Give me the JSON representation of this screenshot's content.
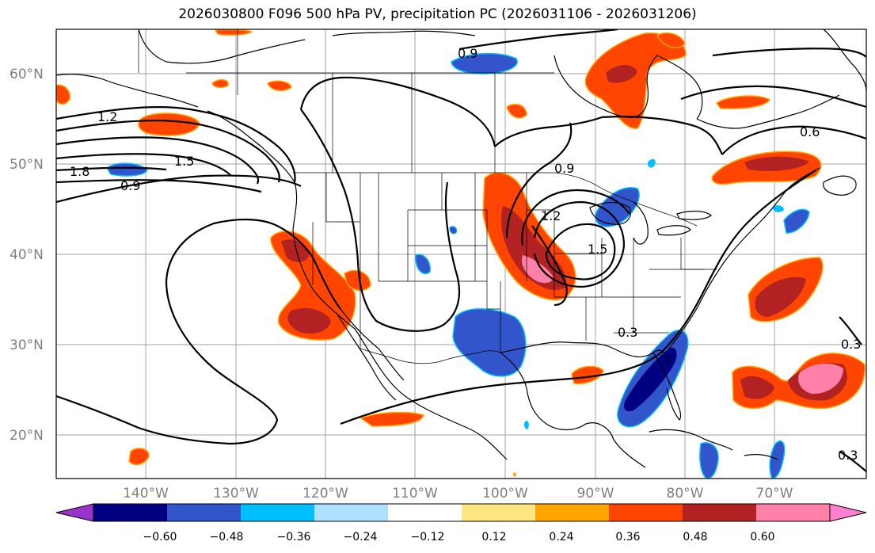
{
  "title": "2026030800 F096 500 hPa PV, precipitation PC (2026031106 - 2026031206)",
  "map": {
    "lat_labels": [
      "60°N",
      "50°N",
      "40°N",
      "30°N",
      "20°N"
    ],
    "lon_labels": [
      "140°W",
      "130°W",
      "120°W",
      "110°W",
      "100°W",
      "90°W",
      "80°W",
      "70°W"
    ],
    "pv_contour_labels": [
      "1.2",
      "1.8",
      "1.5",
      "0.9",
      "0.9",
      "0.6",
      "0.9",
      "1.2",
      "1.5",
      "0.3",
      "0.3",
      "0.3"
    ],
    "colors": {
      "gridline": "#a0a0a0",
      "coastline": "#000000",
      "pv_contour": "#000000"
    }
  },
  "colorbar": {
    "tick_labels": [
      "−0.60",
      "−0.48",
      "−0.36",
      "−0.24",
      "−0.12",
      "0.12",
      "0.24",
      "0.36",
      "0.48",
      "0.60"
    ],
    "colors": [
      "#9933cc",
      "#000080",
      "#3355cc",
      "#00bfff",
      "#b0e0ff",
      "#ffffff",
      "#ffe680",
      "#ffa500",
      "#ff4500",
      "#b22222",
      "#ff80a8",
      "#ff80d0"
    ]
  }
}
